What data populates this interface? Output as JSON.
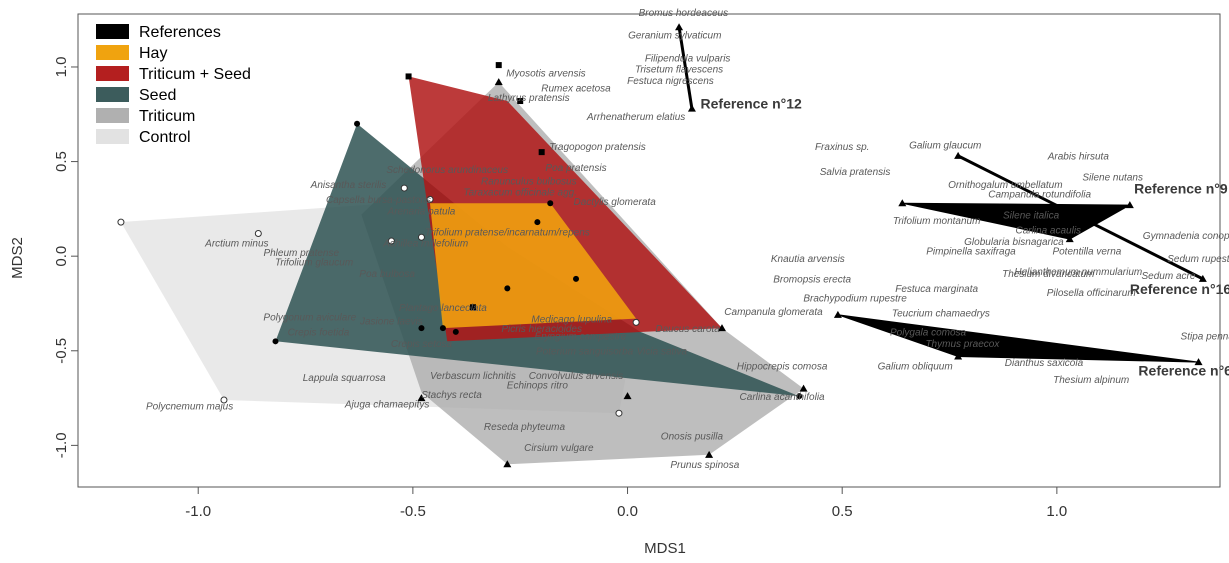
{
  "chart_data": {
    "type": "scatter",
    "title": "",
    "xlabel": "MDS1",
    "ylabel": "MDS2",
    "xlim": [
      -1.28,
      1.38
    ],
    "ylim": [
      -1.22,
      1.28
    ],
    "xticks": [
      -1.0,
      -0.5,
      0.0,
      0.5,
      1.0
    ],
    "yticks": [
      1.0,
      0.5,
      0.0,
      -0.5,
      -1.0
    ],
    "xtick_labels": [
      "-1.0",
      "-0.5",
      "0.0",
      "0.5",
      "1.0"
    ],
    "ytick_labels": [
      "1.0",
      "0.5",
      "0.0",
      "-0.5",
      "-1.0"
    ],
    "grid": false,
    "legend": {
      "position": "top-left",
      "entries": [
        {
          "label": "References",
          "color": "#000000"
        },
        {
          "label": "Hay",
          "color": "#f0a30f"
        },
        {
          "label": "Triticum + Seed",
          "color": "#b41f1f"
        },
        {
          "label": "Seed",
          "color": "#3c5c5c"
        },
        {
          "label": "Triticum",
          "color": "#b0b0b0"
        },
        {
          "label": "Control",
          "color": "#e2e2e2"
        }
      ]
    },
    "series": [
      {
        "name": "Control",
        "color": "#e2e2e2",
        "opacity": 0.75,
        "marker": "circle-open",
        "hull": [
          [
            -1.18,
            0.18
          ],
          [
            -0.94,
            -0.76
          ],
          [
            -0.02,
            -0.83
          ],
          [
            0.02,
            -0.35
          ],
          [
            -0.43,
            0.3
          ]
        ],
        "points": [
          [
            -1.18,
            0.18
          ],
          [
            -0.86,
            0.12
          ],
          [
            -0.55,
            0.08
          ],
          [
            -0.52,
            0.36
          ],
          [
            -0.46,
            0.3
          ],
          [
            -0.48,
            0.1
          ],
          [
            -0.94,
            -0.76
          ],
          [
            -0.02,
            -0.83
          ],
          [
            0.02,
            -0.35
          ]
        ]
      },
      {
        "name": "Triticum",
        "color": "#a8a8a8",
        "opacity": 0.75,
        "marker": "triangle",
        "hull": [
          [
            -0.3,
            0.92
          ],
          [
            0.22,
            -0.38
          ],
          [
            0.41,
            -0.7
          ],
          [
            0.19,
            -1.05
          ],
          [
            -0.28,
            -1.1
          ],
          [
            -0.48,
            -0.72
          ],
          [
            -0.62,
            0.22
          ]
        ],
        "points": [
          [
            -0.3,
            0.92
          ],
          [
            0.22,
            -0.38
          ],
          [
            0.41,
            -0.7
          ],
          [
            0.19,
            -1.05
          ],
          [
            -0.28,
            -1.1
          ],
          [
            0.0,
            -0.74
          ],
          [
            -0.48,
            -0.75
          ]
        ]
      },
      {
        "name": "Seed",
        "color": "#2e5252",
        "opacity": 0.85,
        "marker": "circle",
        "hull": [
          [
            -0.63,
            0.7
          ],
          [
            -0.28,
            0.05
          ],
          [
            0.03,
            -0.4
          ],
          [
            0.4,
            -0.74
          ],
          [
            -0.82,
            -0.45
          ]
        ],
        "points": [
          [
            -0.63,
            0.7
          ],
          [
            -0.82,
            -0.45
          ],
          [
            0.4,
            -0.74
          ],
          [
            -0.48,
            -0.38
          ],
          [
            -0.4,
            -0.4
          ]
        ]
      },
      {
        "name": "Triticum + Seed",
        "color": "#b01818",
        "opacity": 0.85,
        "marker": "square",
        "hull": [
          [
            -0.51,
            0.95
          ],
          [
            -0.28,
            0.82
          ],
          [
            0.22,
            -0.38
          ],
          [
            -0.42,
            -0.45
          ]
        ],
        "points": [
          [
            -0.51,
            0.95
          ],
          [
            -0.3,
            1.01
          ],
          [
            -0.25,
            0.82
          ],
          [
            -0.2,
            0.55
          ],
          [
            -0.36,
            -0.27
          ]
        ]
      },
      {
        "name": "Hay",
        "color": "#f0a010",
        "opacity": 0.9,
        "marker": "circle",
        "hull": [
          [
            -0.46,
            0.28
          ],
          [
            -0.18,
            0.28
          ],
          [
            0.02,
            -0.33
          ],
          [
            -0.43,
            -0.38
          ]
        ],
        "points": [
          [
            -0.18,
            0.28
          ],
          [
            -0.21,
            0.18
          ],
          [
            -0.28,
            -0.17
          ],
          [
            -0.12,
            -0.12
          ],
          [
            -0.43,
            -0.38
          ]
        ]
      },
      {
        "name": "References",
        "color": "#000000",
        "marker": "triangle",
        "groups": [
          {
            "label": "Reference n°12",
            "points": [
              [
                0.12,
                1.21
              ],
              [
                0.15,
                0.78
              ]
            ]
          },
          {
            "label": "Reference n°9",
            "points": [
              [
                0.64,
                0.28
              ],
              [
                1.17,
                0.27
              ],
              [
                1.03,
                0.09
              ]
            ]
          },
          {
            "label": "Reference n°16",
            "points": [
              [
                0.77,
                0.53
              ],
              [
                1.34,
                -0.12
              ]
            ]
          },
          {
            "label": "Reference n°6",
            "points": [
              [
                0.49,
                -0.31
              ],
              [
                1.33,
                -0.56
              ],
              [
                0.77,
                -0.53
              ]
            ]
          }
        ]
      }
    ],
    "species": [
      {
        "name": "Bromus hordeaceus",
        "x": 0.13,
        "y": 1.27
      },
      {
        "name": "Geranium sylvaticum",
        "x": 0.11,
        "y": 1.15
      },
      {
        "name": "Filipendula vulparis",
        "x": 0.14,
        "y": 1.03
      },
      {
        "name": "Trisetum flavescens",
        "x": 0.12,
        "y": 0.97
      },
      {
        "name": "Festuca nigrescens",
        "x": 0.1,
        "y": 0.91
      },
      {
        "name": "Myosotis arvensis",
        "x": -0.19,
        "y": 0.95
      },
      {
        "name": "Rumex acetosa",
        "x": -0.12,
        "y": 0.87
      },
      {
        "name": "Lathyrus pratensis",
        "x": -0.23,
        "y": 0.82
      },
      {
        "name": "Arrhenatherum elatius",
        "x": 0.02,
        "y": 0.72
      },
      {
        "name": "Tragopogon pratensis",
        "x": -0.07,
        "y": 0.56
      },
      {
        "name": "Poa pratensis",
        "x": -0.12,
        "y": 0.45
      },
      {
        "name": "Schedonorus arundinaceus",
        "x": -0.42,
        "y": 0.44
      },
      {
        "name": "Ranunculus bulbosus",
        "x": -0.23,
        "y": 0.38
      },
      {
        "name": "Taraxacum officinale agg.",
        "x": -0.25,
        "y": 0.32
      },
      {
        "name": "Dactylis glomerata",
        "x": -0.03,
        "y": 0.27
      },
      {
        "name": "Anisantha sterilis",
        "x": -0.65,
        "y": 0.36
      },
      {
        "name": "Capsella bursa-pastoris",
        "x": -0.58,
        "y": 0.28
      },
      {
        "name": "Arenaria patula",
        "x": -0.48,
        "y": 0.22
      },
      {
        "name": "Trifolium pratense/incarnatum/repens",
        "x": -0.28,
        "y": 0.11
      },
      {
        "name": "Achillea millefolium",
        "x": -0.47,
        "y": 0.05
      },
      {
        "name": "Arctium minus",
        "x": -0.91,
        "y": 0.05
      },
      {
        "name": "Phleum pratense",
        "x": -0.76,
        "y": 0.0
      },
      {
        "name": "Trifolium glaucum",
        "x": -0.73,
        "y": -0.05
      },
      {
        "name": "Poa bulbosa",
        "x": -0.56,
        "y": -0.11
      },
      {
        "name": "Plantago lanceolata",
        "x": -0.43,
        "y": -0.29
      },
      {
        "name": "Medicago lupulina",
        "x": -0.13,
        "y": -0.35
      },
      {
        "name": "Polygonum aviculare",
        "x": -0.74,
        "y": -0.34
      },
      {
        "name": "Jasione laevis",
        "x": -0.55,
        "y": -0.36
      },
      {
        "name": "Crepis foetida",
        "x": -0.72,
        "y": -0.42
      },
      {
        "name": "Eryngium campestre",
        "x": -0.11,
        "y": -0.44
      },
      {
        "name": "Daucus carota",
        "x": 0.14,
        "y": -0.4
      },
      {
        "name": "Picris hieracioides",
        "x": -0.2,
        "y": -0.4
      },
      {
        "name": "Crepis setosa",
        "x": -0.48,
        "y": -0.48
      },
      {
        "name": "Poterium sanguisorba",
        "x": -0.1,
        "y": -0.52
      },
      {
        "name": "Vicia sativa",
        "x": 0.08,
        "y": -0.52
      },
      {
        "name": "Lappula squarrosa",
        "x": -0.66,
        "y": -0.66
      },
      {
        "name": "Verbascum lichnitis",
        "x": -0.36,
        "y": -0.65
      },
      {
        "name": "Convolvulus arvensis",
        "x": -0.12,
        "y": -0.65
      },
      {
        "name": "Echinops ritro",
        "x": -0.21,
        "y": -0.7
      },
      {
        "name": "Stachys recta",
        "x": -0.41,
        "y": -0.75
      },
      {
        "name": "Ajuga chamaepitys",
        "x": -0.56,
        "y": -0.8
      },
      {
        "name": "Polycnemum majus",
        "x": -1.02,
        "y": -0.81
      },
      {
        "name": "Reseda phyteuma",
        "x": -0.24,
        "y": -0.92
      },
      {
        "name": "Cirsium vulgare",
        "x": -0.16,
        "y": -1.03
      },
      {
        "name": "Onosis pusilla",
        "x": 0.15,
        "y": -0.97
      },
      {
        "name": "Prunus spinosa",
        "x": 0.18,
        "y": -1.12
      },
      {
        "name": "Hippocrepis comosa",
        "x": 0.36,
        "y": -0.6
      },
      {
        "name": "Carlina acanthifolia",
        "x": 0.36,
        "y": -0.76
      },
      {
        "name": "Fraxinus sp.",
        "x": 0.5,
        "y": 0.56
      },
      {
        "name": "Salvia pratensis",
        "x": 0.53,
        "y": 0.43
      },
      {
        "name": "Knautia arvensis",
        "x": 0.42,
        "y": -0.03
      },
      {
        "name": "Bromopsis erecta",
        "x": 0.43,
        "y": -0.14
      },
      {
        "name": "Brachypodium rupestre",
        "x": 0.53,
        "y": -0.24
      },
      {
        "name": "Campanula glomerata",
        "x": 0.34,
        "y": -0.31
      },
      {
        "name": "Festuca marginata",
        "x": 0.72,
        "y": -0.19
      },
      {
        "name": "Teucrium chamaedrys",
        "x": 0.73,
        "y": -0.32
      },
      {
        "name": "Polygala comosa",
        "x": 0.7,
        "y": -0.42
      },
      {
        "name": "Thymus praecox",
        "x": 0.78,
        "y": -0.48
      },
      {
        "name": "Galium obliquum",
        "x": 0.67,
        "y": -0.6
      },
      {
        "name": "Dianthus saxicola",
        "x": 0.97,
        "y": -0.58
      },
      {
        "name": "Thesium alpinum",
        "x": 1.08,
        "y": -0.67
      },
      {
        "name": "Stipa pennata",
        "x": 1.36,
        "y": -0.44
      },
      {
        "name": "Galium glaucum",
        "x": 0.74,
        "y": 0.57
      },
      {
        "name": "Arabis hirsuta",
        "x": 1.05,
        "y": 0.51
      },
      {
        "name": "Silene nutans",
        "x": 1.13,
        "y": 0.4
      },
      {
        "name": "Ornithogalum umbellatum",
        "x": 0.88,
        "y": 0.36
      },
      {
        "name": "Campanula rotundifolia",
        "x": 0.96,
        "y": 0.31
      },
      {
        "name": "Silene italica",
        "x": 0.94,
        "y": 0.2
      },
      {
        "name": "Trifolium montanum",
        "x": 0.72,
        "y": 0.17
      },
      {
        "name": "Carlina acaulis",
        "x": 0.98,
        "y": 0.12
      },
      {
        "name": "Globularia bisnagarica",
        "x": 0.9,
        "y": 0.06
      },
      {
        "name": "Gymnadenia conopsea",
        "x": 1.32,
        "y": 0.09
      },
      {
        "name": "Potentilla verna",
        "x": 1.07,
        "y": 0.01
      },
      {
        "name": "Pimpinella saxifraga",
        "x": 0.8,
        "y": 0.01
      },
      {
        "name": "Sedum rupestre",
        "x": 1.34,
        "y": -0.03
      },
      {
        "name": "Helianthemum nummularium",
        "x": 1.05,
        "y": -0.1
      },
      {
        "name": "Sedum acre",
        "x": 1.26,
        "y": -0.12
      },
      {
        "name": "Thesium divaricatum",
        "x": 0.98,
        "y": -0.11
      },
      {
        "name": "Pilosella officinarum",
        "x": 1.08,
        "y": -0.21
      }
    ]
  }
}
